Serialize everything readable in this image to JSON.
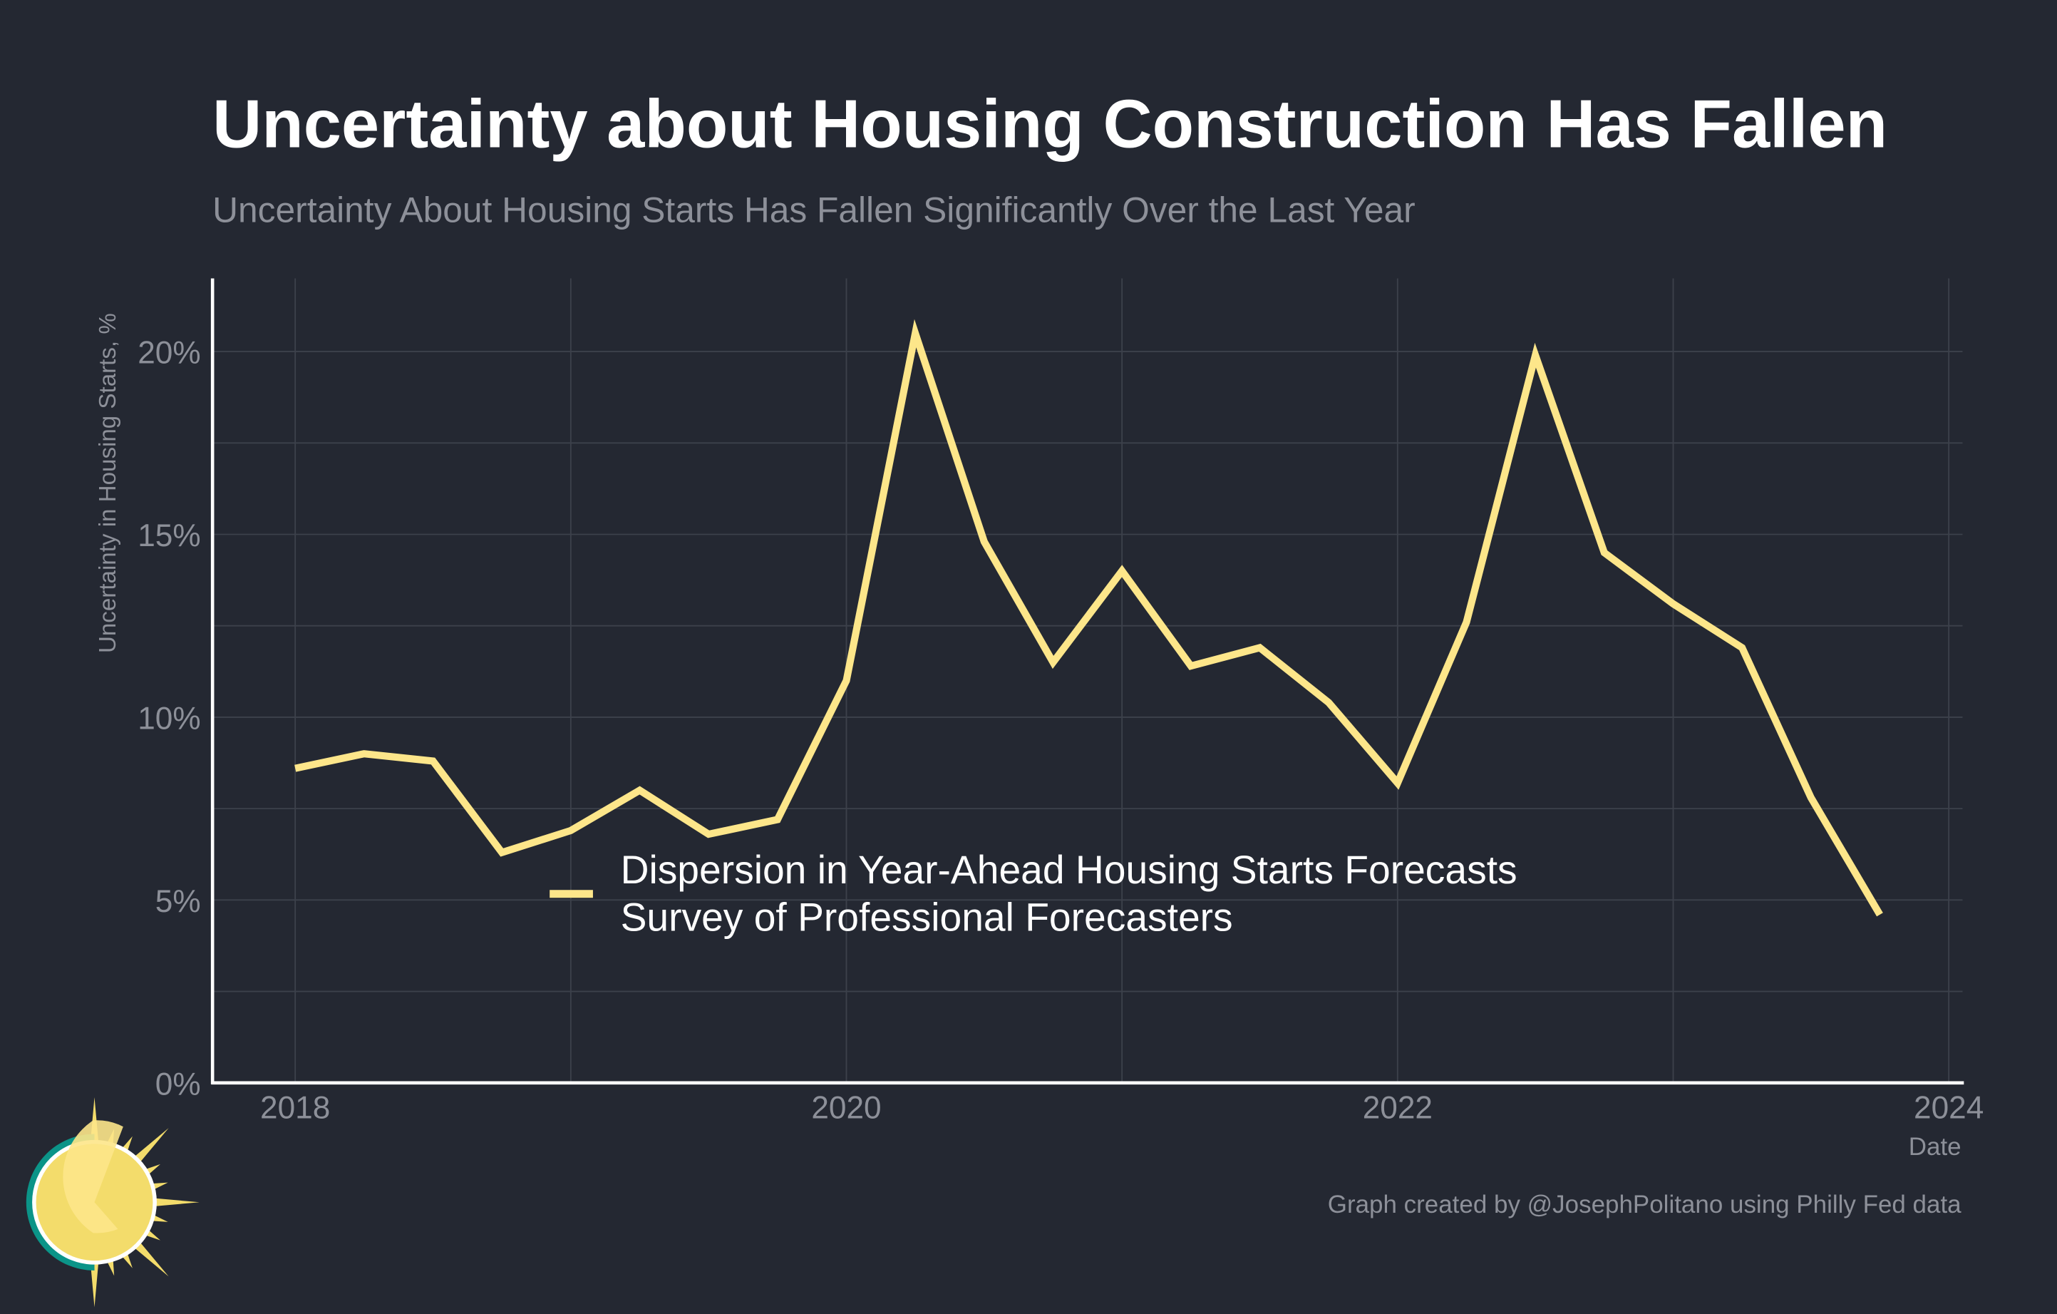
{
  "colors": {
    "background": "#242832",
    "line": "#fde68a",
    "grid": "#3c414b",
    "axis": "#ffffff",
    "muted_text": "#8d9099",
    "logo_teal": "#0b9488",
    "logo_yellow": "#f3dc6b"
  },
  "chart_data": {
    "type": "line",
    "title": "Uncertainty about Housing Construction Has Fallen",
    "subtitle": "Uncertainty About Housing Starts Has Fallen Significantly Over the Last Year",
    "xlabel": "Date",
    "ylabel": "Uncertainty in Housing Starts, %",
    "xlim": [
      2017.7,
      2024.05
    ],
    "ylim": [
      0,
      22
    ],
    "x_ticks": [
      2018,
      2020,
      2022,
      2024
    ],
    "x_tick_labels": [
      "2018",
      "2020",
      "2022",
      "2024"
    ],
    "y_ticks": [
      0,
      5,
      10,
      15,
      20
    ],
    "y_tick_labels": [
      "0%",
      "5%",
      "10%",
      "15%",
      "20%"
    ],
    "grid": true,
    "legend_position": "center-bottom",
    "series": [
      {
        "name": "Dispersion in Year-Ahead Housing Starts Forecasts",
        "name_line2": "Survey of Professional Forecasters",
        "x": [
          2018.0,
          2018.25,
          2018.5,
          2018.75,
          2019.0,
          2019.25,
          2019.5,
          2019.75,
          2020.0,
          2020.25,
          2020.5,
          2020.75,
          2021.0,
          2021.25,
          2021.5,
          2021.75,
          2022.0,
          2022.25,
          2022.5,
          2022.75,
          2023.0,
          2023.25,
          2023.5,
          2023.75
        ],
        "values": [
          8.6,
          9.0,
          8.8,
          6.3,
          6.9,
          8.0,
          6.8,
          7.2,
          11.0,
          20.5,
          14.8,
          11.5,
          14.0,
          11.4,
          11.9,
          10.4,
          8.2,
          12.6,
          19.9,
          14.5,
          13.1,
          11.9,
          7.8,
          4.6
        ]
      }
    ],
    "caption": "Graph created by @JosephPolitano using Philly Fed data"
  }
}
